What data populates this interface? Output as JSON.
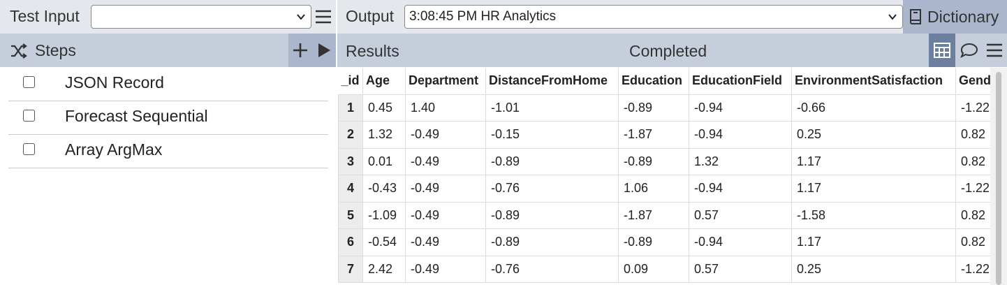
{
  "toolbar": {
    "test_input_label": "Test Input",
    "output_label": "Output",
    "output_value": "3:08:45 PM HR Analytics",
    "dictionary_button": "Dictionary"
  },
  "steps_header": {
    "title": "Steps"
  },
  "steps": [
    "JSON Record",
    "Forecast Sequential",
    "Array ArgMax"
  ],
  "results_header": {
    "title": "Results",
    "status": "Completed"
  },
  "table": {
    "columns": [
      "_id",
      "Age",
      "Department",
      "DistanceFromHome",
      "Education",
      "EducationField",
      "EnvironmentSatisfaction",
      "Gender"
    ],
    "rows": [
      [
        "1",
        "0.45",
        "1.40",
        "-1.01",
        "-0.89",
        "-0.94",
        "-0.66",
        "-1.22"
      ],
      [
        "2",
        "1.32",
        "-0.49",
        "-0.15",
        "-1.87",
        "-0.94",
        "0.25",
        "0.82"
      ],
      [
        "3",
        "0.01",
        "-0.49",
        "-0.89",
        "-0.89",
        "1.32",
        "1.17",
        "0.82"
      ],
      [
        "4",
        "-0.43",
        "-0.49",
        "-0.76",
        "1.06",
        "-0.94",
        "1.17",
        "-1.22"
      ],
      [
        "5",
        "-1.09",
        "-0.49",
        "-0.89",
        "-1.87",
        "0.57",
        "-1.58",
        "0.82"
      ],
      [
        "6",
        "-0.54",
        "-0.49",
        "-0.89",
        "-0.89",
        "-0.94",
        "1.17",
        "0.82"
      ],
      [
        "7",
        "2.42",
        "-0.49",
        "-0.76",
        "0.09",
        "0.57",
        "0.25",
        "-1.22"
      ]
    ]
  }
}
